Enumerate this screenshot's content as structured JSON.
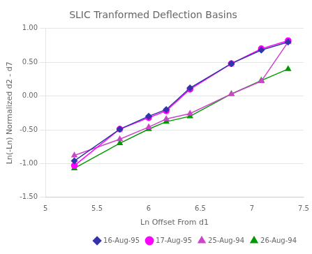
{
  "chart_data": {
    "type": "line",
    "title": "SLIC Tranformed Deflection Basins",
    "xlabel": "Ln Offset From d1",
    "ylabel": "Ln(-Ln) Normalized d2 - d7",
    "x": [
      5.28,
      5.72,
      6.0,
      6.17,
      6.4,
      6.8,
      7.09,
      7.35
    ],
    "series": [
      {
        "name": "16-Aug-95",
        "color": "#3333AA",
        "marker": "diamond",
        "values": [
          -0.96,
          -0.49,
          -0.3,
          -0.2,
          0.12,
          0.48,
          0.68,
          0.8
        ]
      },
      {
        "name": "17-Aug-95",
        "color": "#FF00FF",
        "marker": "circle",
        "values": [
          -1.03,
          -0.49,
          -0.32,
          -0.22,
          0.1,
          0.48,
          0.7,
          0.82
        ]
      },
      {
        "name": "25-Aug-94",
        "color": "#CC44CC",
        "marker": "triangle",
        "values": [
          -0.88,
          -0.64,
          -0.46,
          -0.34,
          -0.26,
          0.03,
          0.22,
          0.8
        ]
      },
      {
        "name": "26-Aug-94",
        "color": "#009900",
        "marker": "triangle",
        "values": [
          -1.07,
          -0.7,
          -0.49,
          -0.38,
          -0.3,
          0.03,
          0.23,
          0.4
        ]
      }
    ],
    "xlim": [
      5,
      7.5
    ],
    "xticks": [
      5,
      5.5,
      6,
      6.5,
      7,
      7.5
    ],
    "ylim": [
      -1.5,
      1.0
    ],
    "yticks": [
      {
        "value": -1.5,
        "label": "-1.50"
      },
      {
        "value": -1.0,
        "label": "-1.00"
      },
      {
        "value": -0.5,
        "label": "-0.50"
      },
      {
        "value": 0,
        "label": "0.00"
      },
      {
        "value": 0.5,
        "label": "0.50"
      },
      {
        "value": 1.0,
        "label": "1.00"
      }
    ],
    "grid": "y",
    "legend": "lower right"
  }
}
